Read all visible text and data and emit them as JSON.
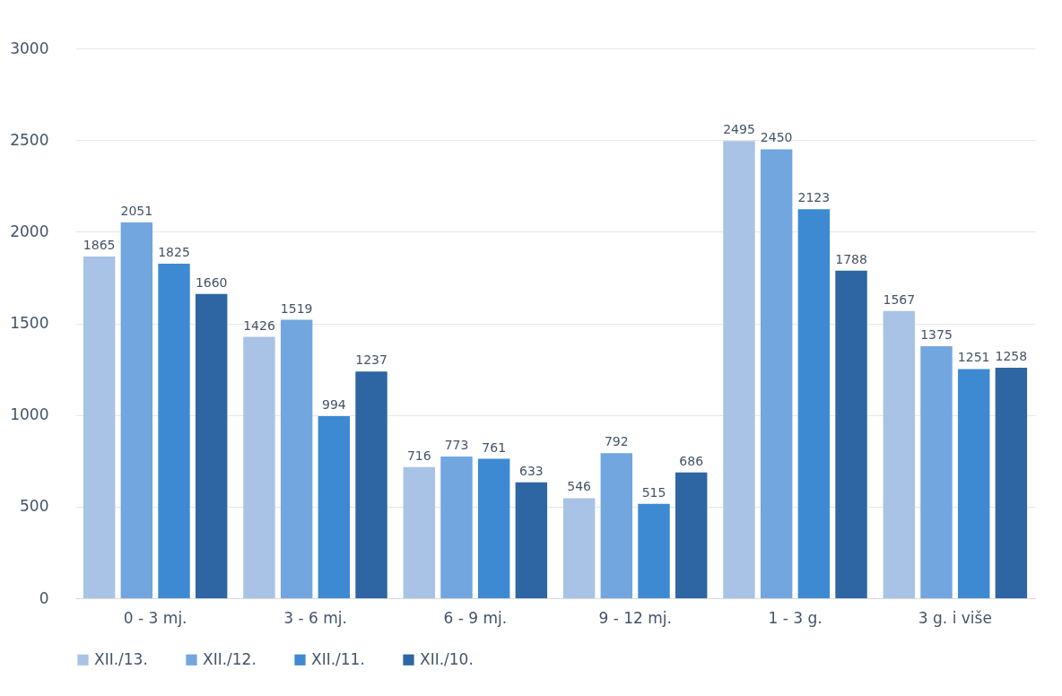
{
  "chart_data": {
    "type": "bar",
    "categories": [
      "0 - 3 mj.",
      "3 - 6 mj.",
      "6 - 9 mj.",
      "9 - 12 mj.",
      "1 - 3 g.",
      "3 g. i više"
    ],
    "series": [
      {
        "name": "XII./13.",
        "color": "#a9c3e6",
        "values": [
          1865,
          1426,
          716,
          546,
          2495,
          1567
        ]
      },
      {
        "name": "XII./12.",
        "color": "#72a6df",
        "values": [
          2051,
          1519,
          773,
          792,
          2450,
          1375
        ]
      },
      {
        "name": "XII./11.",
        "color": "#3d8ad3",
        "values": [
          1825,
          994,
          761,
          515,
          2123,
          1251
        ]
      },
      {
        "name": "XII./10.",
        "color": "#2e66a3",
        "values": [
          1660,
          1237,
          633,
          686,
          1788,
          1258
        ]
      }
    ],
    "ylim": [
      0,
      3000
    ],
    "yticks": [
      0,
      500,
      1000,
      1500,
      2000,
      2500,
      3000
    ],
    "grid": "y",
    "legend": "bottom",
    "data_labels": true
  }
}
